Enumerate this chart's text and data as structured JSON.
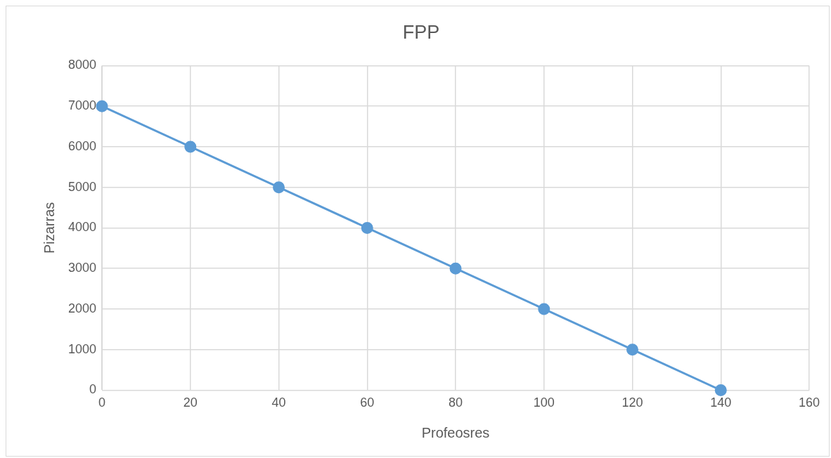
{
  "chart_data": {
    "type": "line",
    "title": "FPP",
    "xlabel": "Profeosres",
    "ylabel": "Pizarras",
    "x": [
      0,
      20,
      40,
      60,
      80,
      100,
      120,
      140
    ],
    "series": [
      {
        "color": "#5b9bd5",
        "values": [
          7000,
          6000,
          5000,
          4000,
          3000,
          2000,
          1000,
          0
        ]
      }
    ],
    "xlim": [
      0,
      160
    ],
    "xticks": [
      0,
      20,
      40,
      60,
      80,
      100,
      120,
      140,
      160
    ],
    "ylim": [
      0,
      8000
    ],
    "yticks": [
      0,
      1000,
      2000,
      3000,
      4000,
      5000,
      6000,
      7000,
      8000
    ],
    "grid": true,
    "legend": false,
    "marker": "circle",
    "line_style": "solid"
  }
}
